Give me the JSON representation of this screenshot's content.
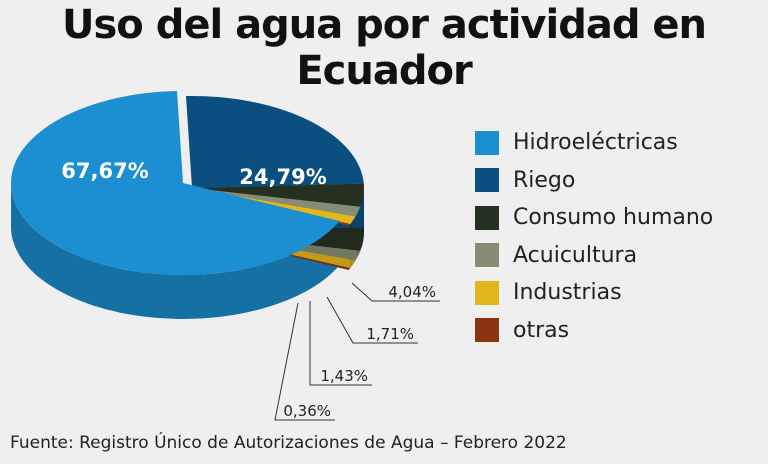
{
  "chart_data": {
    "type": "pie",
    "title": "Uso del agua por actividad en Ecuador",
    "source": "Fuente: Registro Único de Autorizaciones de Agua – Febrero 2022",
    "legend_position": "right",
    "slices": [
      {
        "label": "Hidroeléctricas",
        "value": 67.67,
        "value_label": "67,67%",
        "color": "#1b8fd2"
      },
      {
        "label": "Riego",
        "value": 24.79,
        "value_label": "24,79%",
        "color": "#0b4f80"
      },
      {
        "label": "Consumo humano",
        "value": 4.04,
        "value_label": "4,04%",
        "color": "#263020"
      },
      {
        "label": "Acuicultura",
        "value": 1.71,
        "value_label": "1,71%",
        "color": "#868c76"
      },
      {
        "label": "Industrias",
        "value": 1.43,
        "value_label": "1,43%",
        "color": "#e2b71c"
      },
      {
        "label": "otras",
        "value": 0.36,
        "value_label": "0,36%",
        "color": "#8a3412"
      }
    ]
  }
}
